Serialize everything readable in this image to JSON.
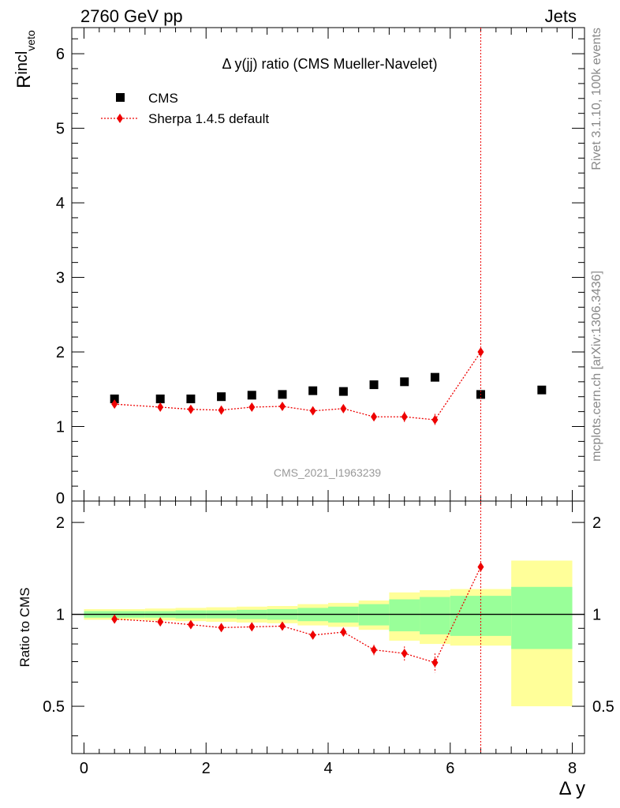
{
  "header": {
    "left": "2760 GeV pp",
    "right": "Jets"
  },
  "side_labels": {
    "rivet": "Rivet 3.1.10,  100k events",
    "mcplots": "mcplots.cern.ch [arXiv:1306.3436]"
  },
  "colors": {
    "cms": "#000000",
    "mc": "#ee0000",
    "band_inner": "#99ff99",
    "band_outer": "#ffff99"
  },
  "chart_data": [
    {
      "type": "scatter",
      "title": "Δ y(jj) ratio (CMS Mueller-Navelet)",
      "ylabel_main": "R",
      "ylabel_sup": "incl",
      "ylabel_sub": "veto",
      "watermark": "CMS_2021_I1963239",
      "xlim": [
        -0.2,
        8.2
      ],
      "ylim": [
        0,
        6.35
      ],
      "yticks": [
        "0",
        "1",
        "2",
        "3",
        "4",
        "5",
        "6"
      ],
      "legend": {
        "placement": "top-left",
        "cms_label": "CMS",
        "mc_label": "Sherpa 1.4.5 default"
      },
      "series": [
        {
          "name": "CMS",
          "x": [
            0.5,
            1.25,
            1.75,
            2.25,
            2.75,
            3.25,
            3.75,
            4.25,
            4.75,
            5.25,
            5.75,
            6.5,
            7.5
          ],
          "y": [
            1.37,
            1.37,
            1.37,
            1.4,
            1.42,
            1.43,
            1.48,
            1.47,
            1.56,
            1.6,
            1.66,
            1.43,
            1.49
          ],
          "xlow": [
            0,
            1.0,
            1.5,
            2.0,
            2.5,
            3.0,
            3.5,
            4.0,
            4.5,
            5.0,
            5.5,
            6.0,
            7.0
          ],
          "xhigh": [
            1.0,
            1.5,
            2.0,
            2.5,
            3.0,
            3.5,
            4.0,
            4.5,
            5.0,
            5.5,
            6.0,
            7.0,
            8.0
          ]
        },
        {
          "name": "Sherpa 1.4.5 default",
          "x": [
            0.5,
            1.25,
            1.75,
            2.25,
            2.75,
            3.25,
            3.75,
            4.25,
            4.75,
            5.25,
            5.75,
            6.5
          ],
          "y": [
            1.3,
            1.26,
            1.23,
            1.22,
            1.26,
            1.27,
            1.21,
            1.24,
            1.13,
            1.13,
            1.09,
            2.0
          ],
          "err": [
            0.02,
            0.02,
            0.02,
            0.03,
            0.03,
            0.03,
            0.04,
            0.05,
            0.05,
            0.07,
            0.08,
            4.6
          ]
        }
      ]
    },
    {
      "type": "scatter",
      "ylabel": "Ratio to CMS",
      "xlabel": "Δ y",
      "xlim": [
        -0.2,
        8.2
      ],
      "ylim": [
        0.35,
        2.35
      ],
      "xticks": [
        "0",
        "2",
        "4",
        "6",
        "8"
      ],
      "yticks": [
        "0.5",
        "1",
        "2"
      ],
      "bands": {
        "edges": [
          0,
          1.0,
          1.5,
          2.0,
          2.5,
          3.0,
          3.5,
          4.0,
          4.5,
          5.0,
          5.5,
          6.0,
          7.0,
          8.0
        ],
        "inner": [
          0.025,
          0.025,
          0.03,
          0.03,
          0.035,
          0.04,
          0.05,
          0.06,
          0.08,
          0.12,
          0.14,
          0.15,
          0.23
        ],
        "outer": [
          0.04,
          0.045,
          0.05,
          0.055,
          0.06,
          0.065,
          0.08,
          0.09,
          0.11,
          0.18,
          0.2,
          0.21,
          0.5
        ]
      },
      "series": [
        {
          "name": "Sherpa 1.4.5 default",
          "x": [
            0.5,
            1.25,
            1.75,
            2.25,
            2.75,
            3.25,
            3.75,
            4.25,
            4.75,
            5.25,
            5.75,
            6.5
          ],
          "y": [
            0.965,
            0.945,
            0.925,
            0.905,
            0.91,
            0.915,
            0.855,
            0.875,
            0.765,
            0.745,
            0.695,
            1.43
          ],
          "err": [
            0.01,
            0.01,
            0.012,
            0.015,
            0.015,
            0.015,
            0.02,
            0.03,
            0.03,
            0.04,
            0.05,
            3.0
          ]
        }
      ]
    }
  ]
}
